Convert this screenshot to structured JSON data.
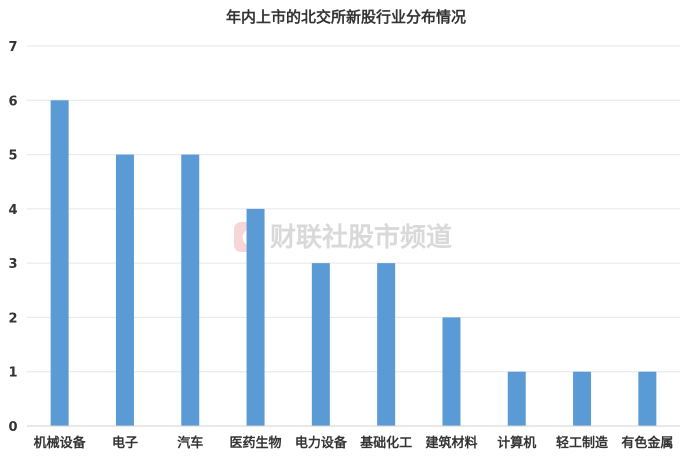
{
  "chart_data": {
    "type": "bar",
    "title": "年内上市的北交所新股行业分布情况",
    "categories": [
      "机械设备",
      "电子",
      "汽车",
      "医药生物",
      "电力设备",
      "基础化工",
      "建筑材料",
      "计算机",
      "轻工制造",
      "有色金属"
    ],
    "values": [
      6,
      5,
      5,
      4,
      3,
      3,
      2,
      1,
      1,
      1
    ],
    "ylim": [
      0,
      7
    ],
    "yticks": [
      0,
      1,
      2,
      3,
      4,
      5,
      6,
      7
    ],
    "xlabel": "",
    "ylabel": "",
    "grid": true,
    "bar_color": "#5b9bd5"
  },
  "watermark": {
    "text": "财联社股市频道",
    "logo_letter": "C"
  }
}
